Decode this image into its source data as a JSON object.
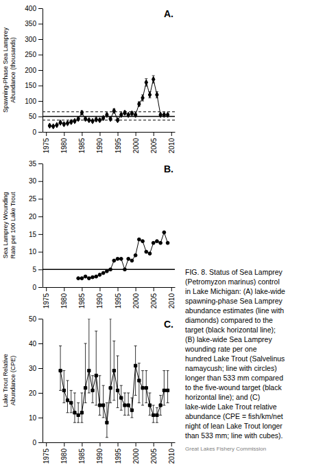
{
  "chart_data": [
    {
      "type": "line",
      "title": "A.",
      "ylabel": "Spawning-Phase Sea Lamprey Abundance (thousands)",
      "color": "black",
      "marker": "diamond",
      "line_style": "solid",
      "x": [
        1976,
        1977,
        1978,
        1979,
        1980,
        1981,
        1982,
        1983,
        1984,
        1985,
        1986,
        1987,
        1988,
        1989,
        1990,
        1991,
        1992,
        1993,
        1994,
        1995,
        1996,
        1997,
        1998,
        1999,
        2000,
        2001,
        2002,
        2003,
        2004,
        2005,
        2006,
        2007,
        2008,
        2009
      ],
      "values": [
        20,
        18,
        22,
        30,
        25,
        28,
        32,
        35,
        42,
        62,
        42,
        38,
        35,
        40,
        38,
        45,
        55,
        42,
        68,
        38,
        55,
        62,
        55,
        60,
        55,
        90,
        110,
        160,
        120,
        170,
        120,
        55,
        55,
        55
      ],
      "yerr_low": [
        3,
        3,
        3,
        3,
        4,
        3,
        4,
        4,
        5,
        6,
        5,
        4,
        4,
        5,
        4,
        5,
        5,
        4,
        6,
        4,
        5,
        5,
        4,
        5,
        4,
        7,
        10,
        12,
        10,
        12,
        10,
        5,
        5,
        5
      ],
      "yerr_high": [
        3,
        3,
        3,
        3,
        4,
        3,
        4,
        4,
        5,
        6,
        5,
        4,
        4,
        5,
        4,
        5,
        5,
        4,
        6,
        4,
        5,
        5,
        4,
        5,
        4,
        7,
        10,
        12,
        10,
        12,
        10,
        5,
        5,
        5
      ],
      "reference_lines": [
        {
          "value": 50,
          "line_style": "solid"
        },
        {
          "value": 65,
          "line_style": "dashed"
        },
        {
          "value": 38,
          "line_style": "dashed"
        }
      ],
      "xlim": [
        1974,
        2011
      ],
      "xticks": [
        1975,
        1980,
        1985,
        1990,
        1995,
        2000,
        2005,
        2010
      ],
      "ylim": [
        0,
        400
      ],
      "yticks": [
        0,
        50,
        100,
        150,
        200,
        250,
        300,
        350,
        400
      ],
      "grid": false,
      "annotations": [
        "FIG. 8. Status of Sea Lamprey",
        "(Petromyzon marinus) control",
        "in Lake Michigan: (A) lake-wide",
        "spawning-phase Sea Lamprey",
        "abundance estimates (line with",
        "diamonds) compared to the",
        "target (black horizontal line);",
        "(B) lake-wide Sea Lamprey",
        "wounding rate per one",
        "hundred Lake Trout (Salvelinus",
        "namaycush; line with circles)",
        "longer than 533 mm compared",
        "to the five-wound target (black",
        "horizontal line); and (C)",
        "lake-wide Lake Trout relative",
        "abundance (CPE = fish/km/net",
        "night of lean Lake Trout longer",
        "than 533 mm; line with cubes).",
        "Great Lakes Fishery Commission"
      ]
    },
    {
      "type": "line",
      "title": "B.",
      "ylabel": "Sea Lamprey Wounding Rate per 100 Lake Trout",
      "color": "black",
      "marker": "circle",
      "line_style": "solid",
      "x": [
        1984,
        1985,
        1986,
        1987,
        1988,
        1989,
        1990,
        1991,
        1992,
        1993,
        1994,
        1995,
        1996,
        1997,
        1998,
        1999,
        2000,
        2001,
        2002,
        2003,
        2004,
        2005,
        2006,
        2007,
        2008,
        2009
      ],
      "values": [
        2.5,
        2.5,
        3.0,
        2.5,
        2.8,
        3.0,
        3.5,
        4.0,
        4.5,
        5.0,
        7.5,
        8.0,
        8.0,
        5.0,
        8.0,
        7.5,
        9.0,
        13.5,
        13.0,
        10.0,
        9.5,
        12.5,
        13.0,
        12.5,
        15.5,
        12.5
      ],
      "reference_lines": [
        {
          "value": 5.0,
          "line_style": "solid"
        }
      ],
      "xlim": [
        1974,
        2011
      ],
      "xticks": [
        1975,
        1980,
        1985,
        1990,
        1995,
        2000,
        2005,
        2010
      ],
      "ylim": [
        0,
        35
      ],
      "yticks": [
        0,
        5,
        10,
        15,
        20,
        25,
        30,
        35
      ],
      "grid": false
    },
    {
      "type": "line",
      "title": "C.",
      "ylabel": "Lake Trout Relative Abundance (CPE)",
      "color": "black",
      "marker": "square",
      "line_style": "solid",
      "x": [
        1979,
        1980,
        1981,
        1982,
        1983,
        1984,
        1985,
        1986,
        1987,
        1988,
        1989,
        1990,
        1991,
        1992,
        1993,
        1994,
        1995,
        1996,
        1997,
        1998,
        1999,
        2000,
        2001,
        2002,
        2003,
        2004,
        2005,
        2006,
        2007,
        2008,
        2009
      ],
      "values": [
        29,
        21,
        17,
        16,
        12,
        11,
        12,
        22,
        29,
        21,
        27,
        15,
        15,
        8,
        22,
        29,
        21,
        18,
        15,
        15,
        13,
        31,
        25,
        22,
        22,
        15,
        11,
        11,
        15,
        21,
        21
      ],
      "yerr_low": [
        8,
        5,
        5,
        4,
        4,
        3,
        4,
        6,
        9,
        5,
        12,
        4,
        5,
        6,
        6,
        12,
        7,
        5,
        4,
        4,
        3,
        12,
        9,
        7,
        6,
        4,
        3,
        3,
        4,
        6,
        5
      ],
      "yerr_high": [
        10,
        8,
        8,
        5,
        8,
        5,
        8,
        18,
        21,
        6,
        18,
        12,
        8,
        8,
        28,
        12,
        14,
        5,
        5,
        5,
        5,
        8,
        7,
        7,
        7,
        5,
        4,
        3,
        4,
        8,
        8
      ],
      "xlim": [
        1974,
        2011
      ],
      "xticks": [
        1975,
        1980,
        1985,
        1990,
        1995,
        2000,
        2005,
        2010
      ],
      "ylim": [
        0,
        50
      ],
      "yticks": [
        0,
        10,
        20,
        30,
        40,
        50
      ],
      "grid": false
    }
  ]
}
